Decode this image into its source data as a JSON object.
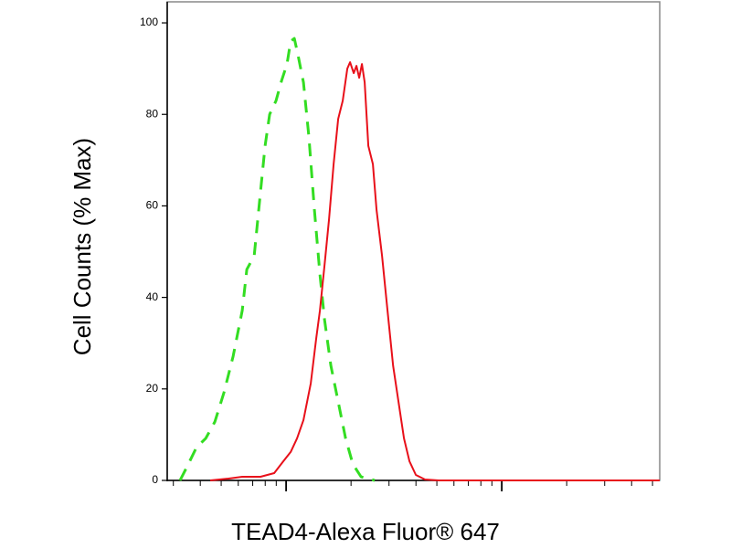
{
  "chart_data": {
    "type": "line",
    "xlabel": "TEAD4-Alexa Fluor® 647",
    "ylabel": "Cell Counts (% Max)",
    "xscale": "log",
    "xlim": [
      281,
      54000
    ],
    "ylim": [
      0,
      104.6
    ],
    "yticks": [
      0,
      20,
      40,
      60,
      80,
      100
    ],
    "series": [
      {
        "color": "#33dd22",
        "dashed": true,
        "x": [
          322,
          349,
          384,
          424,
          467,
          515,
          568,
          626,
          657,
          711,
          761,
          799,
          839,
          898,
          953,
          1010,
          1050,
          1092,
          1135,
          1204,
          1276,
          1353,
          1435,
          1507,
          1613,
          1744,
          1886,
          2039,
          2226,
          2576
        ],
        "values": [
          0,
          3.2,
          7.2,
          9.2,
          12.8,
          19.2,
          27.1,
          37.1,
          46.1,
          49.1,
          63.1,
          73.1,
          80,
          83,
          87.4,
          91,
          96,
          96.6,
          93,
          87,
          75,
          59.1,
          45.1,
          35.1,
          25.1,
          17.2,
          9.2,
          3.6,
          0.8,
          0
        ]
      },
      {
        "color": "#e8101a",
        "dashed": false,
        "x": [
          445,
          541,
          626,
          761,
          881,
          971,
          1050,
          1124,
          1204,
          1301,
          1380,
          1435,
          1507,
          1582,
          1661,
          1744,
          1831,
          1923,
          1980,
          2058,
          2120,
          2183,
          2247,
          2314,
          2406,
          2527,
          2627,
          2786,
          2954,
          3133,
          3321,
          3521,
          3733,
          3997,
          4407,
          5100,
          54000
        ],
        "values": [
          0,
          0.4,
          0.8,
          0.8,
          1.6,
          4.2,
          6.2,
          9.2,
          13.2,
          21.2,
          31.1,
          37.1,
          47.1,
          57.1,
          69.1,
          79,
          83,
          90,
          91.4,
          89,
          90.6,
          88,
          91,
          87,
          73.1,
          69.1,
          59.1,
          49.1,
          37.1,
          25.1,
          17.2,
          9.2,
          4.2,
          1.2,
          0.2,
          0,
          0
        ]
      }
    ]
  }
}
